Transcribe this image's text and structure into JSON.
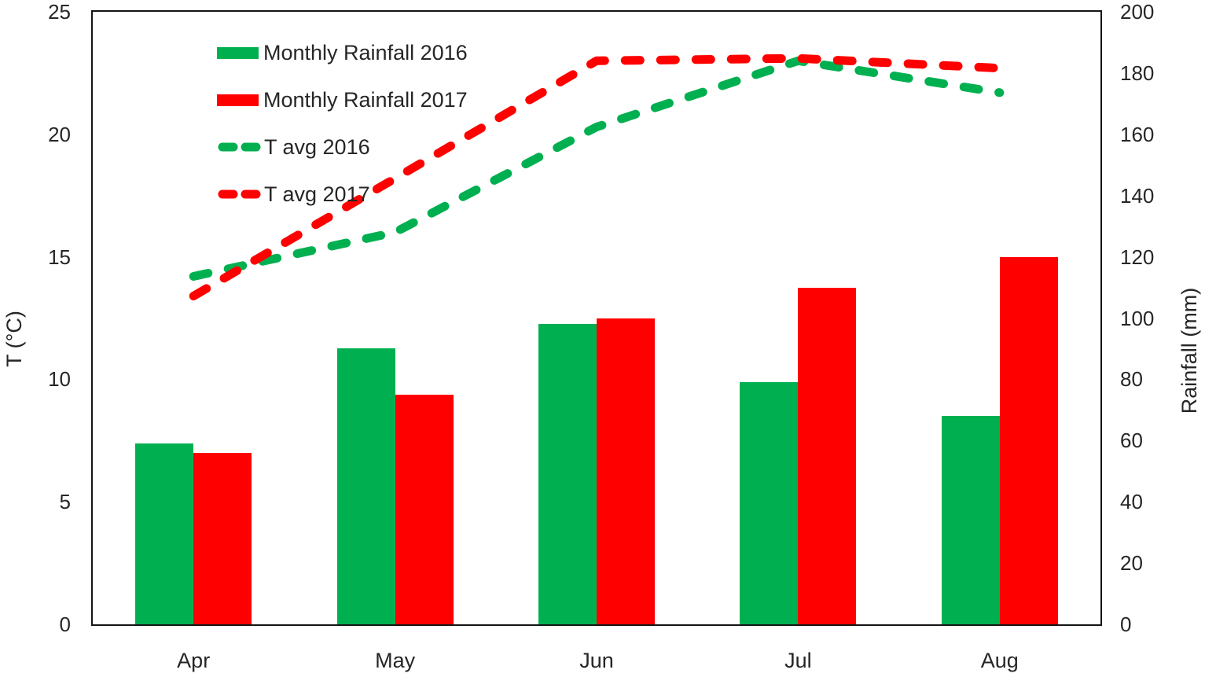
{
  "chart_data": {
    "type": "bar",
    "subtype": "grouped-bars-with-dashed-lines-combo",
    "categories": [
      "Apr",
      "May",
      "Jun",
      "Jul",
      "Aug"
    ],
    "series": [
      {
        "name": "Monthly Rainfall 2016",
        "type": "bar",
        "axis": "right",
        "color": "#00B050",
        "values": [
          59,
          90,
          98,
          79,
          68
        ]
      },
      {
        "name": "Monthly Rainfall 2017",
        "type": "bar",
        "axis": "right",
        "color": "#FF0000",
        "values": [
          56,
          75,
          100,
          110,
          120
        ]
      },
      {
        "name": "T avg 2016",
        "type": "line",
        "dash": true,
        "axis": "left",
        "color": "#00B050",
        "values": [
          14.2,
          16.0,
          20.3,
          23.0,
          21.7
        ]
      },
      {
        "name": "T avg 2017",
        "type": "line",
        "dash": true,
        "axis": "left",
        "color": "#FF0000",
        "values": [
          13.4,
          18.2,
          23.0,
          23.1,
          22.7
        ]
      }
    ],
    "left_axis": {
      "label": "T (°C)",
      "min": 0,
      "max": 25,
      "step": 5,
      "ticks": [
        0,
        5,
        10,
        15,
        20,
        25
      ]
    },
    "right_axis": {
      "label": "Rainfall (mm)",
      "min": 0,
      "max": 200,
      "step": 20,
      "ticks": [
        0,
        20,
        40,
        60,
        80,
        100,
        120,
        140,
        160,
        180,
        200
      ]
    },
    "legend_position": "top-left-inside",
    "grid": false,
    "colors": {
      "axis_line": "#151515",
      "text": "#262626",
      "background": "#ffffff"
    }
  }
}
